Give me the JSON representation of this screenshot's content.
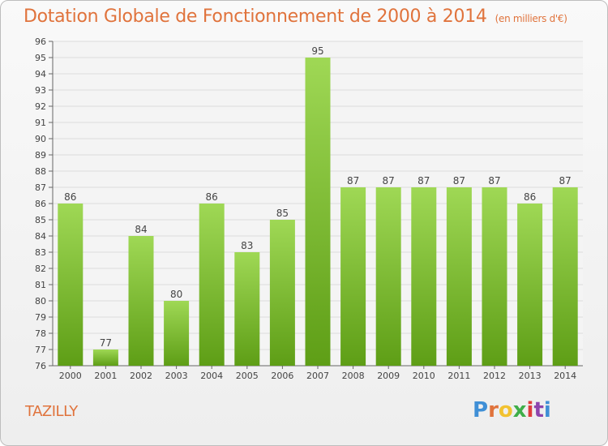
{
  "header": {
    "title": "Dotation Globale de Fonctionnement de 2000 à 2014",
    "unit": "(en milliers d'€)"
  },
  "footer": {
    "commune": "TAZILLY",
    "logo_text": "Proxiti"
  },
  "colors": {
    "title": "#e0733c",
    "bar_top": "#9fd855",
    "bar_bottom": "#5e9e16",
    "logo": [
      "#3f8fd6",
      "#e0733c",
      "#f2c230",
      "#3fae49",
      "#e03c3c",
      "#8e44ad",
      "#3f8fd6"
    ]
  },
  "chart_data": {
    "type": "bar",
    "categories": [
      "2000",
      "2001",
      "2002",
      "2003",
      "2004",
      "2005",
      "2006",
      "2007",
      "2008",
      "2009",
      "2010",
      "2011",
      "2012",
      "2013",
      "2014"
    ],
    "values": [
      86,
      77,
      84,
      80,
      86,
      83,
      85,
      95,
      87,
      87,
      87,
      87,
      87,
      86,
      87
    ],
    "ylim": [
      76,
      96
    ],
    "yticks": [
      76,
      77,
      78,
      79,
      80,
      81,
      82,
      83,
      84,
      85,
      86,
      87,
      88,
      89,
      90,
      91,
      92,
      93,
      94,
      95,
      96
    ],
    "grid": true,
    "data_labels": true
  }
}
